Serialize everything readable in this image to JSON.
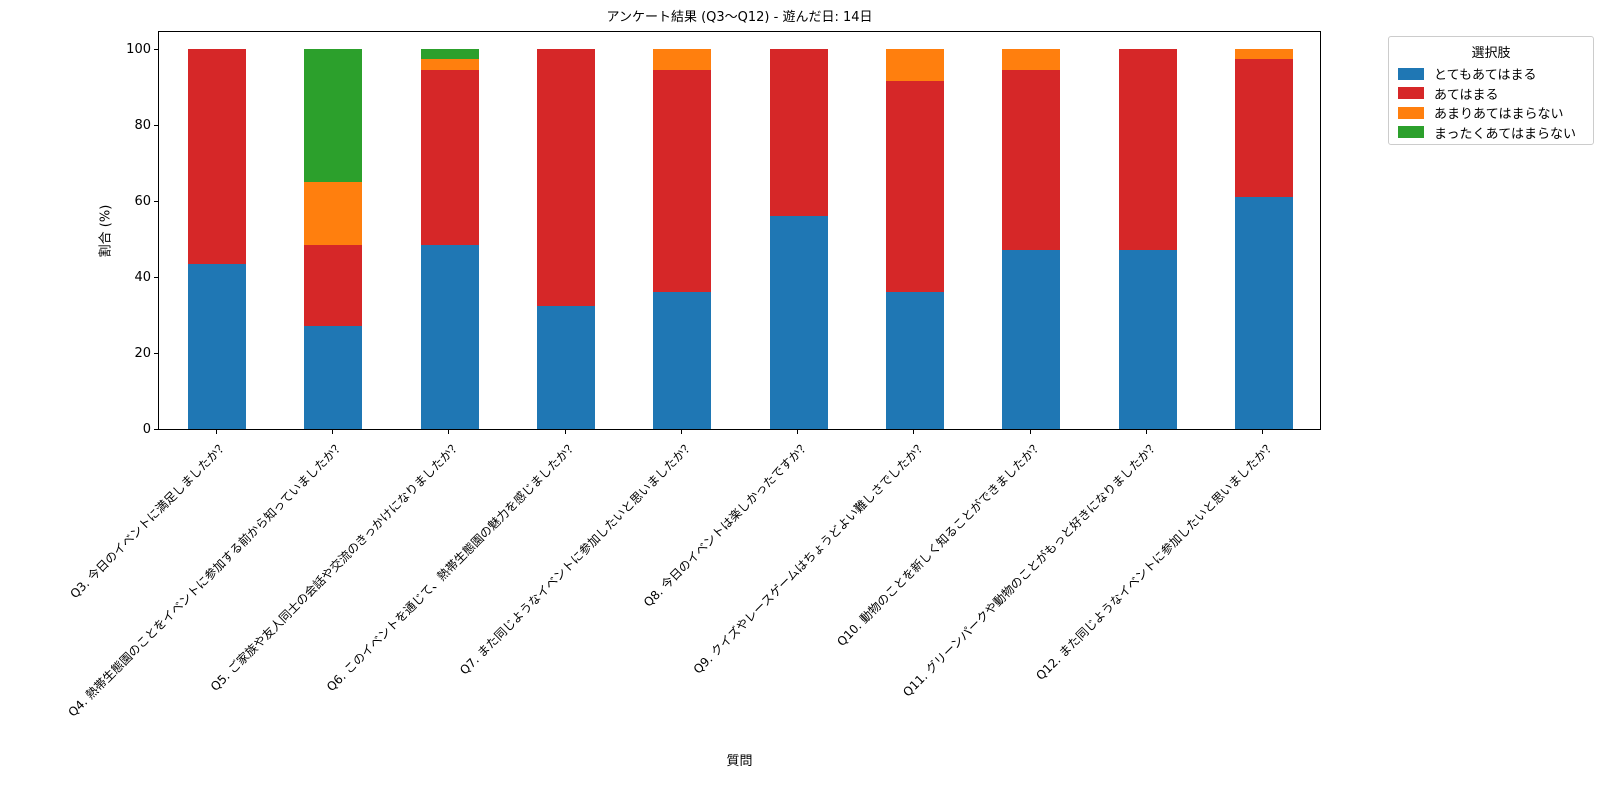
{
  "figure": {
    "title": "アンケート結果 (Q3〜Q12) - 遊んだ日: 14日",
    "xlabel": "質問",
    "ylabel": "割合 (%)"
  },
  "legend": {
    "title": "選択肢"
  },
  "chart_data": {
    "type": "bar",
    "stacked": true,
    "title": "アンケート結果 (Q3〜Q12) - 遊んだ日: 14日",
    "xlabel": "質問",
    "ylabel": "割合 (%)",
    "ylim": [
      0,
      105
    ],
    "yticks": [
      0,
      20,
      40,
      60,
      80,
      100
    ],
    "grid": false,
    "x_tick_rotation": 45,
    "legend_title": "選択肢",
    "legend_position": "outside upper right",
    "categories": [
      "Q3. 今日のイベントに満足しましたか？",
      "Q4. 熱帯生態園のことをイベントに参加する前から知っていましたか？",
      "Q5. ご家族や友人同士の会話や交流のきっかけになりましたか？",
      "Q6. このイベントを通じて、熱帯生態園の魅力を感じましたか？",
      "Q7. また同じようなイベントに参加したいと思いましたか？",
      "Q8. 今日のイベントは楽しかったですか？",
      "Q9. クイズやレースゲームはちょうどよい難しさでしたか？",
      "Q10. 動物のことを新しく知ることができましたか？",
      "Q11. グリーンパークや動物のことがもっと好きになりましたか？",
      "Q12. また同じようなイベントに参加したいと思いましたか？"
    ],
    "series": [
      {
        "name": "とてもあてはまる",
        "color": "#1f77b4",
        "values": [
          43.5,
          27.0,
          48.5,
          32.5,
          36.0,
          56.0,
          36.0,
          47.0,
          47.0,
          61.0
        ]
      },
      {
        "name": "あてはまる",
        "color": "#d62728",
        "values": [
          56.5,
          21.5,
          46.0,
          67.5,
          58.5,
          44.0,
          55.5,
          47.5,
          53.0,
          36.5
        ]
      },
      {
        "name": "あまりあてはまらない",
        "color": "#ff7f0e",
        "values": [
          0,
          16.5,
          3.0,
          0,
          5.5,
          0,
          8.5,
          5.5,
          0,
          2.5
        ]
      },
      {
        "name": "まったくあてはまらない",
        "color": "#2ca02c",
        "values": [
          0,
          35.0,
          2.5,
          0,
          0,
          0,
          0,
          0,
          0,
          0
        ]
      }
    ]
  }
}
